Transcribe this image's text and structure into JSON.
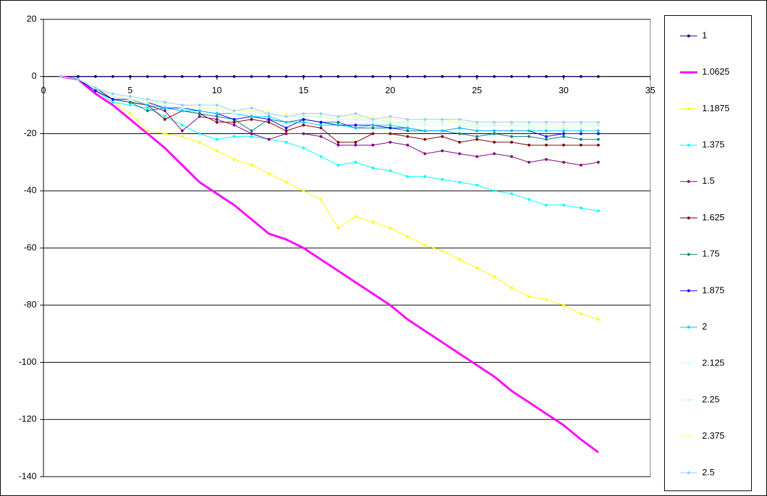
{
  "chart_data": {
    "type": "line",
    "x": [
      1,
      2,
      3,
      4,
      5,
      6,
      7,
      8,
      9,
      10,
      11,
      12,
      13,
      14,
      15,
      16,
      17,
      18,
      19,
      20,
      21,
      22,
      23,
      24,
      25,
      26,
      27,
      28,
      29,
      30,
      31,
      32
    ],
    "xlim": [
      0,
      35
    ],
    "xticks": [
      0,
      5,
      10,
      15,
      20,
      25,
      30,
      35
    ],
    "ylim": [
      -140,
      20
    ],
    "yticks": [
      -140,
      -120,
      -100,
      -80,
      -60,
      -40,
      -20,
      0,
      20
    ],
    "grid": true,
    "legend": "right",
    "series": [
      {
        "name": "1",
        "color": "#000080",
        "line_width": 1,
        "values": [
          0,
          0,
          0,
          0,
          0,
          0,
          0,
          0,
          0,
          0,
          0,
          0,
          0,
          0,
          0,
          0,
          0,
          0,
          0,
          0,
          0,
          0,
          0,
          0,
          0,
          0,
          0,
          0,
          0,
          0,
          0,
          0
        ]
      },
      {
        "name": "1.0625",
        "color": "#ff00ff",
        "line_width": 3,
        "values": [
          0,
          -1,
          -6,
          -10,
          -15,
          -20,
          -25,
          -31,
          -37,
          -41,
          -45,
          -50,
          -55,
          -57,
          -60,
          -64,
          -68,
          -72,
          -76,
          -80,
          -85,
          -89,
          -93,
          -97,
          -101,
          -105,
          -110,
          -114,
          -118,
          -122,
          -127,
          -131.5
        ]
      },
      {
        "name": "1.1875",
        "color": "#ffff00",
        "line_width": 1,
        "values": [
          0,
          -1,
          -5,
          -9,
          -13,
          -19,
          -20,
          -21,
          -23,
          -26,
          -29,
          -31,
          -34,
          -37,
          -40,
          -43,
          -53,
          -49,
          -51,
          -53,
          -56,
          -59,
          -61,
          -64,
          -67,
          -70,
          -74,
          -77,
          -78,
          -80,
          -83,
          -85
        ]
      },
      {
        "name": "1.375",
        "color": "#00ffff",
        "line_width": 1,
        "values": [
          0,
          -1,
          -5,
          -9,
          -10,
          -11,
          -14,
          -17,
          -20,
          -22,
          -21,
          -21,
          -22,
          -23,
          -25,
          -28,
          -31,
          -30,
          -32,
          -33,
          -35,
          -35,
          -36,
          -37,
          -38,
          -40,
          -41,
          -43,
          -45,
          -45,
          -46,
          -47
        ]
      },
      {
        "name": "1.5",
        "color": "#800080",
        "line_width": 1,
        "values": [
          0,
          -1,
          -5,
          -8,
          -9,
          -10,
          -12,
          -19,
          -14,
          -15,
          -17,
          -20,
          -22,
          -20,
          -20,
          -21,
          -24,
          -24,
          -24,
          -23,
          -24,
          -27,
          -26,
          -27,
          -28,
          -27,
          -28,
          -30,
          -29,
          -30,
          -31,
          -30
        ]
      },
      {
        "name": "1.625",
        "color": "#800000",
        "line_width": 1,
        "values": [
          0,
          -1,
          -4,
          -8,
          -9,
          -10,
          -15,
          -12,
          -13,
          -16,
          -16,
          -15,
          -16,
          -19,
          -17,
          -18,
          -23,
          -23,
          -20,
          -20,
          -21,
          -22,
          -21,
          -23,
          -22,
          -23,
          -23,
          -24,
          -24,
          -24,
          -24,
          -24
        ]
      },
      {
        "name": "1.75",
        "color": "#008080",
        "line_width": 1,
        "values": [
          0,
          -1,
          -5,
          -8,
          -9,
          -12,
          -11,
          -12,
          -13,
          -14,
          -15,
          -19,
          -15,
          -16,
          -15,
          -16,
          -16,
          -18,
          -18,
          -18,
          -19,
          -19,
          -19,
          -20,
          -21,
          -20,
          -21,
          -21,
          -22,
          -21,
          -22,
          -22
        ]
      },
      {
        "name": "1.875",
        "color": "#0000ff",
        "line_width": 1,
        "values": [
          0,
          -1,
          -5,
          -8,
          -8,
          -9,
          -11,
          -11,
          -12,
          -13,
          -15,
          -14,
          -15,
          -18,
          -15,
          -16,
          -17,
          -17,
          -17,
          -18,
          -18,
          -19,
          -19,
          -18,
          -19,
          -19,
          -19,
          -19,
          -21,
          -20,
          -20,
          -20
        ]
      },
      {
        "name": "2",
        "color": "#00ccff",
        "line_width": 1,
        "values": [
          0,
          -1,
          -4,
          -7,
          -8,
          -10,
          -11,
          -12,
          -12,
          -13,
          -13,
          -14,
          -14,
          -16,
          -16,
          -17,
          -17,
          -18,
          -17,
          -17,
          -18,
          -19,
          -19,
          -18,
          -19,
          -19,
          -19,
          -19,
          -19,
          -19,
          -19,
          -19
        ]
      },
      {
        "name": "2.125",
        "color": "#ccffff",
        "line_width": 1,
        "values": [
          0,
          -1,
          -4,
          -7,
          -8,
          -8,
          -10,
          -11,
          -11,
          -12,
          -13,
          -13,
          -13,
          -14,
          -14,
          -14,
          -15,
          -15,
          -16,
          -16,
          -17,
          -17,
          -17,
          -17,
          -18,
          -17,
          -17,
          -18,
          -18,
          -18,
          -18,
          -17
        ]
      },
      {
        "name": "2.25",
        "color": "#ccffcc",
        "line_width": 1,
        "values": [
          0,
          -1,
          -4,
          -6,
          -8,
          -9,
          -9,
          -10,
          -11,
          -11,
          -12,
          -12,
          -13,
          -14,
          -14,
          -14,
          -15,
          -15,
          -15,
          -16,
          -16,
          -16,
          -16,
          -16,
          -17,
          -17,
          -17,
          -17,
          -17,
          -17,
          -17,
          -17
        ]
      },
      {
        "name": "2.375",
        "color": "#ffff99",
        "line_width": 1,
        "values": [
          0,
          -1,
          -4,
          -6,
          -8,
          -9,
          -9,
          -10,
          -11,
          -11,
          -12,
          -12,
          -12,
          -13,
          -13,
          -13,
          -14,
          -14,
          -14,
          -15,
          -15,
          -15,
          -15,
          -16,
          -16,
          -16,
          -16,
          -16,
          -16,
          -16,
          -16,
          -16
        ]
      },
      {
        "name": "2.5",
        "color": "#99ccff",
        "line_width": 1,
        "values": [
          0,
          -1,
          -4,
          -6,
          -7,
          -8,
          -9,
          -10,
          -10,
          -10,
          -12,
          -11,
          -13,
          -14,
          -13,
          -13,
          -14,
          -13,
          -15,
          -14,
          -15,
          -15,
          -15,
          -15,
          -16,
          -16,
          -16,
          -16,
          -16,
          -16,
          -16,
          -16
        ]
      }
    ]
  }
}
